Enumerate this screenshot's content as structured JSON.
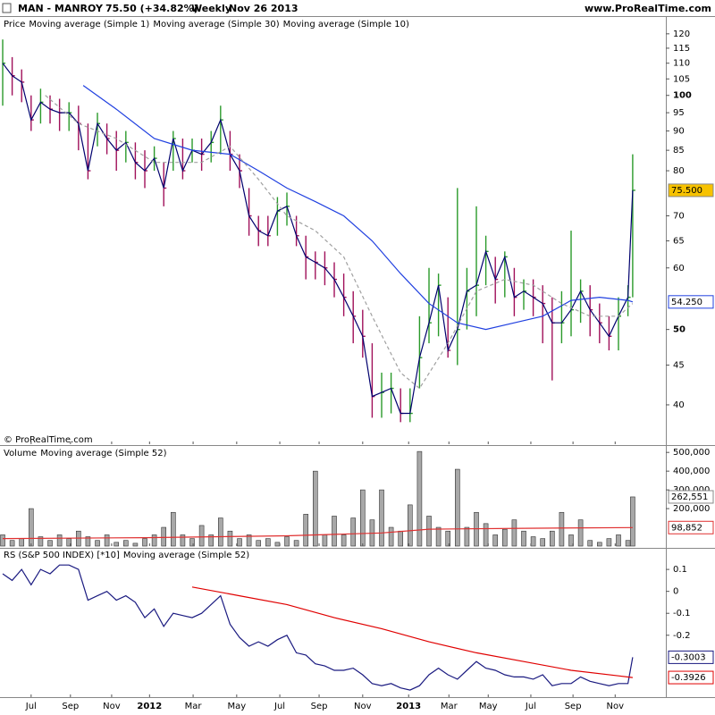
{
  "header": {
    "symbol": "MAN - MANROY",
    "quote": "75.50 (+34.82%)",
    "period": "Weekly",
    "date": "Nov 26 2013",
    "site": "www.ProRealTime.com"
  },
  "chart_data": [
    {
      "type": "ohlc",
      "title": "Price",
      "title_color": "#000000",
      "copyright": "© ProRealTime.com",
      "log_scale": true,
      "xlim": [
        -0.57,
        140
      ],
      "ylim": [
        35.6,
        125.8
      ],
      "yticks": [
        40,
        45,
        50,
        60,
        65,
        70,
        80,
        85,
        90,
        95,
        100,
        105,
        110,
        115,
        120
      ],
      "up_color": "#2a9a2a",
      "down_color": "#a0105a",
      "x": [
        0,
        2,
        4,
        6,
        8,
        10,
        12,
        14,
        16,
        18,
        20,
        22,
        24,
        26,
        28,
        30,
        32,
        34,
        36,
        38,
        40,
        42,
        44,
        46,
        48,
        50,
        52,
        54,
        56,
        58,
        60,
        62,
        64,
        66,
        68,
        70,
        72,
        74,
        76,
        78,
        80,
        82,
        84,
        86,
        88,
        90,
        92,
        94,
        96,
        98,
        100,
        102,
        104,
        106,
        108,
        110,
        112,
        114,
        116,
        118,
        120,
        122,
        124,
        126,
        128,
        130,
        132,
        133
      ],
      "high": [
        118,
        112,
        108,
        100,
        102,
        100,
        99,
        98,
        97,
        92,
        95,
        92,
        90,
        90,
        87,
        85,
        86,
        82,
        90,
        88,
        88,
        88,
        90,
        97,
        90,
        84,
        76,
        70,
        70,
        74,
        75,
        70,
        66,
        63,
        63,
        61,
        59,
        56,
        53,
        48,
        44,
        44,
        42,
        42,
        52,
        60,
        59,
        55,
        76,
        60,
        72,
        66,
        62,
        63,
        60,
        58,
        58,
        57,
        55,
        56,
        67,
        58,
        57,
        54,
        52,
        55,
        57,
        84
      ],
      "low": [
        97,
        100,
        98,
        90,
        92,
        92,
        90,
        90,
        85,
        78,
        86,
        84,
        80,
        82,
        78,
        76,
        80,
        72,
        80,
        78,
        82,
        80,
        82,
        84,
        80,
        76,
        66,
        64,
        64,
        66,
        68,
        64,
        58,
        58,
        57,
        55,
        52,
        48,
        46,
        38.5,
        38.5,
        39,
        38,
        38,
        42,
        48,
        49,
        46,
        45,
        50,
        52,
        57,
        54,
        55,
        52,
        53,
        52,
        48,
        43,
        48,
        49,
        51,
        49,
        48,
        47,
        47,
        52,
        55
      ],
      "close": [
        110,
        106,
        104,
        93,
        98,
        96,
        95,
        95,
        92,
        80,
        92,
        88,
        85,
        87,
        82,
        80,
        83,
        76,
        88,
        80,
        85,
        84,
        87,
        93,
        84,
        80,
        70,
        67,
        66,
        71,
        72,
        66,
        62,
        61,
        60,
        58,
        55,
        52,
        49,
        41,
        41.5,
        42,
        39,
        39,
        46,
        51,
        57,
        47,
        50,
        56,
        57,
        63,
        58,
        62,
        55,
        56,
        55,
        54,
        51,
        51,
        53,
        56,
        53,
        51,
        49,
        52,
        55,
        75.5
      ],
      "last_label": "75.500",
      "last_label_fill": "#f7c200",
      "series": [
        {
          "name": "Moving average (Simple 1)",
          "color": "#00006e"
        },
        {
          "name": "Moving average (Simple 30)",
          "color": "#2040e0",
          "x": [
            17,
            24,
            32,
            40,
            48,
            54,
            60,
            66,
            72,
            78,
            84,
            90,
            96,
            102,
            108,
            114,
            120,
            126,
            132,
            133
          ],
          "values": [
            103,
            96,
            88,
            85,
            84,
            80,
            76,
            73,
            70,
            65,
            59,
            54,
            51,
            50,
            51,
            52,
            54.5,
            55,
            54.5,
            54.25
          ],
          "last_label": "54.250"
        },
        {
          "name": "Moving average (Simple 10)",
          "color": "#a0a0a0",
          "style": "dashed",
          "x": [
            9,
            16,
            24,
            32,
            36,
            42,
            48,
            54,
            60,
            66,
            72,
            78,
            84,
            88,
            94,
            100,
            106,
            112,
            118,
            124,
            130,
            133
          ],
          "values": [
            100,
            92,
            88,
            82,
            82,
            82,
            86,
            78,
            70,
            67,
            62,
            52,
            44,
            42,
            48,
            56,
            58,
            57,
            54,
            52,
            52,
            54
          ]
        }
      ]
    },
    {
      "type": "bar",
      "title": "Volume",
      "title_color": "#909090",
      "color": "#a8a8a8",
      "xlim": [
        -0.57,
        140
      ],
      "ylim": [
        0,
        520000
      ],
      "yticks": [
        {
          "value": 200000,
          "label": "200,000"
        },
        {
          "value": 300000,
          "label": "300,000"
        },
        {
          "value": 400000,
          "label": "400,000"
        },
        {
          "value": 500000,
          "label": "500,000"
        }
      ],
      "x": [
        0,
        2,
        4,
        6,
        8,
        10,
        12,
        14,
        16,
        18,
        20,
        22,
        24,
        26,
        28,
        30,
        32,
        34,
        36,
        38,
        40,
        42,
        44,
        46,
        48,
        50,
        52,
        54,
        56,
        58,
        60,
        62,
        64,
        66,
        68,
        70,
        72,
        74,
        76,
        78,
        80,
        82,
        84,
        86,
        88,
        90,
        92,
        94,
        96,
        98,
        100,
        102,
        104,
        106,
        108,
        110,
        112,
        114,
        116,
        118,
        120,
        122,
        124,
        126,
        128,
        130,
        132,
        133
      ],
      "values": [
        60000,
        30000,
        40000,
        200000,
        50000,
        30000,
        60000,
        40000,
        80000,
        50000,
        30000,
        60000,
        20000,
        30000,
        15000,
        40000,
        60000,
        100000,
        180000,
        60000,
        40000,
        110000,
        60000,
        150000,
        80000,
        40000,
        60000,
        30000,
        40000,
        20000,
        50000,
        30000,
        170000,
        400000,
        60000,
        160000,
        60000,
        150000,
        300000,
        140000,
        300000,
        100000,
        80000,
        220000,
        505000,
        160000,
        100000,
        80000,
        410000,
        100000,
        180000,
        120000,
        60000,
        90000,
        140000,
        80000,
        50000,
        40000,
        80000,
        180000,
        60000,
        140000,
        30000,
        20000,
        40000,
        60000,
        30000,
        262551
      ],
      "last_label": "262,551",
      "last_label_fill": "#ffffff",
      "series": [
        {
          "name": "Moving average (Simple 52)",
          "color": "#e03030",
          "x": [
            0,
            30,
            60,
            80,
            90,
            110,
            133
          ],
          "values": [
            40000,
            45000,
            55000,
            70000,
            90000,
            95000,
            98852
          ],
          "last_label": "98,852"
        }
      ]
    },
    {
      "type": "line",
      "xlim": [
        -0.57,
        140
      ],
      "ylim": [
        -0.482,
        0.186
      ],
      "yticks": [
        -0.2,
        -0.1,
        0,
        0.1
      ],
      "xticks": [
        {
          "value": 6,
          "label": "Jul"
        },
        {
          "value": 14.3,
          "label": "Sep"
        },
        {
          "value": 23,
          "label": "Nov"
        },
        {
          "value": 31,
          "label": "2012"
        },
        {
          "value": 40.2,
          "label": "Mar"
        },
        {
          "value": 49.4,
          "label": "May"
        },
        {
          "value": 58.5,
          "label": "Jul"
        },
        {
          "value": 66.8,
          "label": "Sep"
        },
        {
          "value": 76,
          "label": "Nov"
        },
        {
          "value": 85.7,
          "label": "2013"
        },
        {
          "value": 94.2,
          "label": "Mar"
        },
        {
          "value": 102.5,
          "label": "May"
        },
        {
          "value": 111.5,
          "label": "Jul"
        },
        {
          "value": 120.4,
          "label": "Sep"
        },
        {
          "value": 129.3,
          "label": "Nov"
        }
      ],
      "series": [
        {
          "name": "RS (S&P 500 INDEX) [*10]",
          "color": "#1a1a80",
          "x": [
            0,
            2,
            4,
            6,
            8,
            10,
            12,
            14,
            16,
            18,
            20,
            22,
            24,
            26,
            28,
            30,
            32,
            34,
            36,
            38,
            40,
            42,
            44,
            46,
            48,
            50,
            52,
            54,
            56,
            58,
            60,
            62,
            64,
            66,
            68,
            70,
            72,
            74,
            76,
            78,
            80,
            82,
            84,
            86,
            88,
            90,
            92,
            94,
            96,
            98,
            100,
            102,
            104,
            106,
            108,
            110,
            112,
            114,
            116,
            118,
            120,
            122,
            124,
            126,
            128,
            130,
            132,
            133
          ],
          "values": [
            0.08,
            0.05,
            0.1,
            0.03,
            0.1,
            0.08,
            0.12,
            0.12,
            0.1,
            -0.04,
            -0.02,
            0,
            -0.04,
            -0.02,
            -0.05,
            -0.12,
            -0.08,
            -0.16,
            -0.1,
            -0.11,
            -0.12,
            -0.1,
            -0.06,
            -0.02,
            -0.15,
            -0.21,
            -0.25,
            -0.23,
            -0.25,
            -0.22,
            -0.2,
            -0.28,
            -0.29,
            -0.33,
            -0.34,
            -0.36,
            -0.36,
            -0.35,
            -0.38,
            -0.42,
            -0.43,
            -0.42,
            -0.44,
            -0.45,
            -0.43,
            -0.38,
            -0.35,
            -0.38,
            -0.4,
            -0.36,
            -0.32,
            -0.35,
            -0.36,
            -0.38,
            -0.39,
            -0.39,
            -0.4,
            -0.38,
            -0.43,
            -0.42,
            -0.42,
            -0.39,
            -0.41,
            -0.42,
            -0.43,
            -0.42,
            -0.42,
            -0.3003
          ],
          "last_label": "-0.3003"
        },
        {
          "name": "Moving average (Simple 52)",
          "color": "#e00000",
          "x": [
            40,
            50,
            60,
            70,
            80,
            90,
            100,
            110,
            120,
            130,
            133
          ],
          "values": [
            0.02,
            -0.02,
            -0.06,
            -0.12,
            -0.17,
            -0.23,
            -0.28,
            -0.32,
            -0.36,
            -0.385,
            -0.3926
          ],
          "last_label": "-0.3926"
        }
      ]
    }
  ]
}
